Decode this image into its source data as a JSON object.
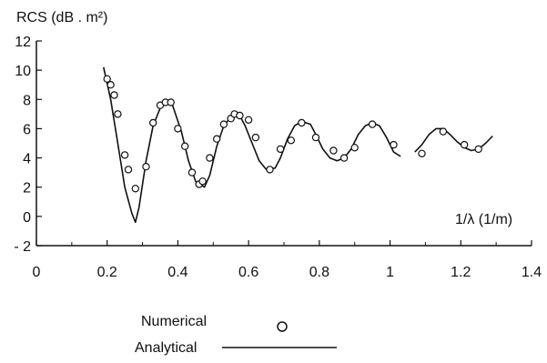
{
  "chart_data": {
    "type": "line",
    "title": "RCS (dB . m²)",
    "xlabel": "1/λ (1/m)",
    "ylabel": "RCS (dB . m²)",
    "xlim": [
      0,
      1.4
    ],
    "ylim": [
      -2,
      12
    ],
    "x_ticks": [
      0,
      0.2,
      0.4,
      0.6,
      0.8,
      1,
      1.2,
      1.4
    ],
    "x_tick_labels": [
      "0",
      "0.2",
      "0.4",
      "0.6",
      "0.8",
      "1",
      "1.2",
      "1.4"
    ],
    "y_ticks": [
      -2,
      0,
      2,
      4,
      6,
      8,
      10,
      12
    ],
    "y_tick_labels": [
      "- 2",
      "0",
      "2",
      "4",
      "6",
      "8",
      "10",
      "12"
    ],
    "grid": false,
    "legend": {
      "placement": "bottom-left",
      "entries": [
        {
          "label": "Numerical",
          "marker": "circle"
        },
        {
          "label": "Analytical",
          "marker": "line"
        }
      ]
    },
    "series": [
      {
        "name": "Analytical",
        "style": "line",
        "segments": [
          {
            "x": [
              0.19,
              0.21,
              0.23,
              0.25,
              0.27,
              0.28,
              0.29,
              0.31,
              0.33,
              0.35,
              0.37,
              0.385,
              0.41,
              0.43,
              0.45,
              0.475,
              0.49,
              0.51,
              0.53,
              0.55,
              0.575,
              0.59,
              0.61,
              0.63,
              0.65,
              0.675,
              0.69,
              0.71,
              0.73,
              0.75,
              0.775,
              0.79,
              0.81,
              0.83,
              0.85,
              0.87,
              0.89,
              0.91,
              0.93,
              0.95,
              0.97,
              0.99,
              1.01,
              1.03
            ],
            "y": [
              10.2,
              8.0,
              5.0,
              2.0,
              0.2,
              -0.4,
              0.6,
              3.8,
              6.2,
              7.4,
              7.8,
              7.6,
              5.8,
              3.8,
              2.4,
              2.0,
              2.8,
              4.8,
              6.2,
              6.8,
              6.9,
              6.2,
              5.0,
              3.8,
              3.2,
              3.3,
              4.0,
              5.3,
              6.2,
              6.5,
              6.3,
              5.6,
              4.6,
              4.0,
              3.8,
              4.0,
              4.6,
              5.6,
              6.2,
              6.4,
              6.2,
              5.4,
              4.4,
              4.1
            ]
          },
          {
            "x": [
              1.07,
              1.09,
              1.11,
              1.13,
              1.15,
              1.17,
              1.19,
              1.21,
              1.23,
              1.25,
              1.27,
              1.29
            ],
            "y": [
              4.4,
              4.9,
              5.6,
              6.0,
              6.0,
              5.6,
              5.1,
              4.7,
              4.5,
              4.6,
              5.0,
              5.5
            ]
          }
        ]
      },
      {
        "name": "Numerical",
        "style": "scatter",
        "x": [
          0.2,
          0.21,
          0.22,
          0.23,
          0.25,
          0.26,
          0.28,
          0.31,
          0.33,
          0.35,
          0.365,
          0.38,
          0.4,
          0.42,
          0.44,
          0.46,
          0.47,
          0.49,
          0.51,
          0.53,
          0.55,
          0.56,
          0.575,
          0.6,
          0.62,
          0.66,
          0.69,
          0.72,
          0.75,
          0.79,
          0.84,
          0.87,
          0.9,
          0.95,
          1.01,
          1.09,
          1.15,
          1.21,
          1.25
        ],
        "y": [
          9.4,
          9.0,
          8.3,
          7.0,
          4.2,
          3.2,
          1.9,
          3.4,
          6.4,
          7.6,
          7.8,
          7.8,
          6.0,
          4.8,
          3.0,
          2.2,
          2.4,
          4.0,
          5.3,
          6.3,
          6.7,
          7.0,
          6.9,
          6.6,
          5.4,
          3.2,
          4.6,
          5.2,
          6.4,
          5.4,
          4.5,
          4.0,
          4.7,
          6.3,
          4.9,
          4.3,
          5.8,
          4.9,
          4.6
        ]
      }
    ]
  }
}
